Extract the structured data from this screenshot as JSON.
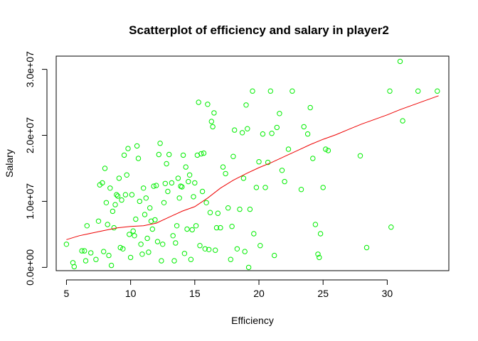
{
  "chart_data": {
    "type": "scatter",
    "title": "Scatterplot of efficiency and salary in player2",
    "xlabel": "Efficiency",
    "ylabel": "Salary",
    "xlim": [
      4.2,
      34.8
    ],
    "ylim": [
      -500000,
      32000000
    ],
    "x_ticks": [
      5,
      10,
      15,
      20,
      25,
      30
    ],
    "x_tick_labels": [
      "5",
      "10",
      "15",
      "20",
      "25",
      "30"
    ],
    "y_ticks": [
      0,
      10000000,
      20000000,
      30000000
    ],
    "y_tick_labels": [
      "0.0e+00",
      "1.0e+07",
      "2.0e+07",
      "3.0e+07"
    ],
    "grid": false,
    "colors": {
      "points": "#00ee00",
      "smooth": "#ee0000"
    },
    "series": [
      {
        "kind": "points",
        "points": [
          [
            5.0,
            3500000
          ],
          [
            5.5,
            700000
          ],
          [
            5.6,
            100000
          ],
          [
            6.2,
            2500000
          ],
          [
            6.4,
            2500000
          ],
          [
            6.5,
            1000000
          ],
          [
            6.6,
            6300000
          ],
          [
            6.9,
            2200000
          ],
          [
            7.3,
            1200000
          ],
          [
            7.5,
            7000000
          ],
          [
            7.6,
            12500000
          ],
          [
            7.8,
            12800000
          ],
          [
            7.9,
            2400000
          ],
          [
            8.0,
            15000000
          ],
          [
            8.1,
            9800000
          ],
          [
            8.2,
            6500000
          ],
          [
            8.3,
            1800000
          ],
          [
            8.4,
            12000000
          ],
          [
            8.5,
            300000
          ],
          [
            8.6,
            8500000
          ],
          [
            8.7,
            6000000
          ],
          [
            8.8,
            9500000
          ],
          [
            8.9,
            11000000
          ],
          [
            9.0,
            10800000
          ],
          [
            9.1,
            13500000
          ],
          [
            9.2,
            3000000
          ],
          [
            9.3,
            10200000
          ],
          [
            9.4,
            2800000
          ],
          [
            9.5,
            17000000
          ],
          [
            9.6,
            11000000
          ],
          [
            9.7,
            14000000
          ],
          [
            9.8,
            18000000
          ],
          [
            9.9,
            5000000
          ],
          [
            10.0,
            1500000
          ],
          [
            10.1,
            11000000
          ],
          [
            10.2,
            5500000
          ],
          [
            10.3,
            4800000
          ],
          [
            10.4,
            7300000
          ],
          [
            10.5,
            18400000
          ],
          [
            10.6,
            16500000
          ],
          [
            10.7,
            10000000
          ],
          [
            10.8,
            3500000
          ],
          [
            10.9,
            2000000
          ],
          [
            11.0,
            12000000
          ],
          [
            11.1,
            8000000
          ],
          [
            11.2,
            10500000
          ],
          [
            11.3,
            4400000
          ],
          [
            11.4,
            2300000
          ],
          [
            11.5,
            9000000
          ],
          [
            11.6,
            7000000
          ],
          [
            11.7,
            5800000
          ],
          [
            11.8,
            12300000
          ],
          [
            11.9,
            7200000
          ],
          [
            12.0,
            12400000
          ],
          [
            12.1,
            3900000
          ],
          [
            12.2,
            17100000
          ],
          [
            12.3,
            18800000
          ],
          [
            12.4,
            1000000
          ],
          [
            12.5,
            3500000
          ],
          [
            12.6,
            9800000
          ],
          [
            12.7,
            12700000
          ],
          [
            12.8,
            15700000
          ],
          [
            12.9,
            11500000
          ],
          [
            13.0,
            17100000
          ],
          [
            13.2,
            12800000
          ],
          [
            13.3,
            4800000
          ],
          [
            13.4,
            1000000
          ],
          [
            13.5,
            3700000
          ],
          [
            13.6,
            6300000
          ],
          [
            13.7,
            13500000
          ],
          [
            13.8,
            10500000
          ],
          [
            13.9,
            12300000
          ],
          [
            14.0,
            12200000
          ],
          [
            14.1,
            17000000
          ],
          [
            14.2,
            2100000
          ],
          [
            14.3,
            15200000
          ],
          [
            14.4,
            5800000
          ],
          [
            14.5,
            13000000
          ],
          [
            14.6,
            14000000
          ],
          [
            14.7,
            1200000
          ],
          [
            14.8,
            5700000
          ],
          [
            14.9,
            10700000
          ],
          [
            15.0,
            12800000
          ],
          [
            15.1,
            6300000
          ],
          [
            15.2,
            17000000
          ],
          [
            15.3,
            25000000
          ],
          [
            15.4,
            3300000
          ],
          [
            15.5,
            17200000
          ],
          [
            15.6,
            11500000
          ],
          [
            15.7,
            17300000
          ],
          [
            15.8,
            2800000
          ],
          [
            15.9,
            9800000
          ],
          [
            16.0,
            24700000
          ],
          [
            16.1,
            2700000
          ],
          [
            16.2,
            8300000
          ],
          [
            16.3,
            22100000
          ],
          [
            16.4,
            21300000
          ],
          [
            16.5,
            23400000
          ],
          [
            16.6,
            2600000
          ],
          [
            16.7,
            6000000
          ],
          [
            16.8,
            8200000
          ],
          [
            17.0,
            6000000
          ],
          [
            17.2,
            15200000
          ],
          [
            17.4,
            14200000
          ],
          [
            17.6,
            9000000
          ],
          [
            17.8,
            1200000
          ],
          [
            17.9,
            6200000
          ],
          [
            18.0,
            16800000
          ],
          [
            18.1,
            20800000
          ],
          [
            18.3,
            2800000
          ],
          [
            18.5,
            8800000
          ],
          [
            18.7,
            20400000
          ],
          [
            18.8,
            13500000
          ],
          [
            18.9,
            2400000
          ],
          [
            19.0,
            24600000
          ],
          [
            19.1,
            21000000
          ],
          [
            19.2,
            0
          ],
          [
            19.3,
            8800000
          ],
          [
            19.5,
            26700000
          ],
          [
            19.6,
            5100000
          ],
          [
            19.8,
            12100000
          ],
          [
            20.0,
            16000000
          ],
          [
            20.1,
            3300000
          ],
          [
            20.3,
            20200000
          ],
          [
            20.5,
            12100000
          ],
          [
            20.7,
            15900000
          ],
          [
            20.9,
            26700000
          ],
          [
            21.0,
            20300000
          ],
          [
            21.2,
            1800000
          ],
          [
            21.4,
            21200000
          ],
          [
            21.6,
            23300000
          ],
          [
            21.8,
            14700000
          ],
          [
            22.0,
            13000000
          ],
          [
            22.3,
            17900000
          ],
          [
            22.6,
            26700000
          ],
          [
            23.3,
            11800000
          ],
          [
            23.5,
            21300000
          ],
          [
            23.8,
            20200000
          ],
          [
            24.0,
            24200000
          ],
          [
            24.2,
            16500000
          ],
          [
            24.4,
            6500000
          ],
          [
            24.6,
            2000000
          ],
          [
            24.7,
            1500000
          ],
          [
            24.8,
            5100000
          ],
          [
            25.0,
            12100000
          ],
          [
            25.2,
            17900000
          ],
          [
            25.4,
            17700000
          ],
          [
            27.9,
            16900000
          ],
          [
            28.4,
            3000000
          ],
          [
            30.2,
            26700000
          ],
          [
            30.3,
            6100000
          ],
          [
            31.0,
            31200000
          ],
          [
            31.2,
            22200000
          ],
          [
            32.4,
            26700000
          ],
          [
            33.9,
            26700000
          ]
        ]
      },
      {
        "kind": "smooth-line",
        "points": [
          [
            5.0,
            4200000
          ],
          [
            6.0,
            4800000
          ],
          [
            7.0,
            5200000
          ],
          [
            8.0,
            5600000
          ],
          [
            9.0,
            6000000
          ],
          [
            10.0,
            6200000
          ],
          [
            11.0,
            6300000
          ],
          [
            12.0,
            6700000
          ],
          [
            13.0,
            7600000
          ],
          [
            14.0,
            8500000
          ],
          [
            15.0,
            9200000
          ],
          [
            16.0,
            10500000
          ],
          [
            17.0,
            12000000
          ],
          [
            18.0,
            13200000
          ],
          [
            19.0,
            14200000
          ],
          [
            20.0,
            15100000
          ],
          [
            21.0,
            15900000
          ],
          [
            22.0,
            16800000
          ],
          [
            23.0,
            17700000
          ],
          [
            24.0,
            18600000
          ],
          [
            25.0,
            19400000
          ],
          [
            26.0,
            20100000
          ],
          [
            27.0,
            20900000
          ],
          [
            28.0,
            21700000
          ],
          [
            29.0,
            22400000
          ],
          [
            30.0,
            23100000
          ],
          [
            31.0,
            23900000
          ],
          [
            32.0,
            24600000
          ],
          [
            33.0,
            25300000
          ],
          [
            34.0,
            26000000
          ]
        ]
      }
    ]
  }
}
